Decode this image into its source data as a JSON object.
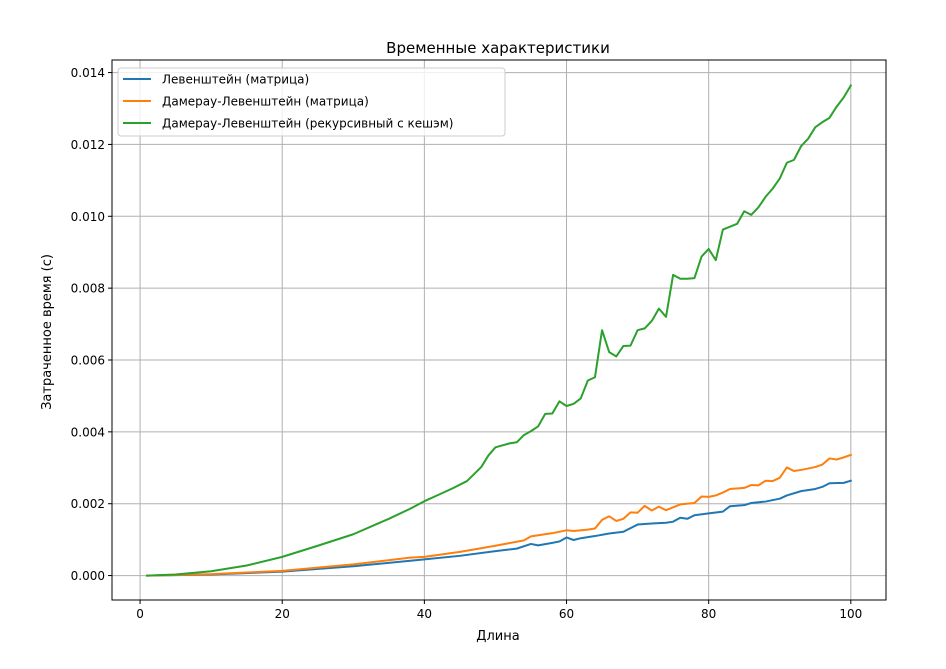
{
  "chart_data": {
    "type": "line",
    "title": "Временные характеристики",
    "xlabel": "Длина",
    "ylabel": "Затраченное время (с)",
    "xlim": [
      -3.95,
      104.95
    ],
    "ylim": [
      -0.00068,
      0.01435
    ],
    "xticks": [
      0,
      20,
      40,
      60,
      80,
      100
    ],
    "xtick_labels": [
      "0",
      "20",
      "40",
      "60",
      "80",
      "100"
    ],
    "yticks": [
      0.0,
      0.002,
      0.004,
      0.006,
      0.008,
      0.01,
      0.012,
      0.014
    ],
    "ytick_labels": [
      "0.000",
      "0.002",
      "0.004",
      "0.006",
      "0.008",
      "0.010",
      "0.012",
      "0.014"
    ],
    "grid": true,
    "legend_position": "top-left",
    "series": [
      {
        "name": "Левенштейн (матрица)",
        "color": "#1f77b4",
        "x": [
          1,
          10,
          20,
          30,
          40,
          45,
          50,
          53,
          55,
          56,
          58,
          59,
          60,
          61,
          62,
          64,
          66,
          68,
          70,
          72,
          74,
          75,
          76,
          77,
          78,
          80,
          82,
          83,
          85,
          86,
          88,
          90,
          91,
          93,
          95,
          96,
          97,
          99,
          100
        ],
        "values": [
          0.0,
          3e-05,
          0.00011,
          0.00026,
          0.00045,
          0.00055,
          0.00068,
          0.00075,
          0.00088,
          0.00084,
          0.00091,
          0.00095,
          0.00106,
          0.00099,
          0.00104,
          0.0011,
          0.00117,
          0.00122,
          0.00142,
          0.00145,
          0.00147,
          0.0015,
          0.00161,
          0.00158,
          0.00168,
          0.00173,
          0.00178,
          0.00193,
          0.00196,
          0.00202,
          0.00206,
          0.00214,
          0.00223,
          0.00235,
          0.00241,
          0.00247,
          0.00257,
          0.00258,
          0.00264
        ]
      },
      {
        "name": "Дамерау-Левенштейн (матрица)",
        "color": "#ff7f0e",
        "x": [
          1,
          10,
          20,
          30,
          38,
          40,
          45,
          50,
          54,
          55,
          58,
          60,
          61,
          63,
          64,
          65,
          66,
          67,
          68,
          69,
          70,
          71,
          72,
          73,
          74,
          76,
          78,
          79,
          80,
          81,
          82,
          83,
          85,
          86,
          87,
          88,
          89,
          90,
          91,
          92,
          93,
          95,
          96,
          97,
          98,
          99,
          100
        ],
        "values": [
          0.0,
          4e-05,
          0.00013,
          0.00031,
          0.0005,
          0.00052,
          0.00066,
          0.00083,
          0.00098,
          0.00109,
          0.00118,
          0.00126,
          0.00124,
          0.00128,
          0.00131,
          0.00155,
          0.00165,
          0.00152,
          0.00158,
          0.00176,
          0.00175,
          0.00194,
          0.00181,
          0.00192,
          0.00182,
          0.00198,
          0.00202,
          0.0022,
          0.00219,
          0.00223,
          0.00231,
          0.00241,
          0.00244,
          0.00252,
          0.00251,
          0.00264,
          0.00263,
          0.00272,
          0.00301,
          0.00291,
          0.00294,
          0.00302,
          0.00309,
          0.00326,
          0.00323,
          0.00329,
          0.00336
        ]
      },
      {
        "name": "Дамерау-Левенштейн (рекурсивный с кешэм)",
        "color": "#2ca02c",
        "x": [
          1,
          5,
          10,
          15,
          20,
          25,
          30,
          35,
          38,
          40,
          42,
          44,
          46,
          48,
          49,
          50,
          52,
          53,
          54,
          55,
          56,
          57,
          58,
          59,
          60,
          61,
          62,
          63,
          64,
          65,
          66,
          67,
          68,
          69,
          70,
          71,
          72,
          73,
          74,
          75,
          76,
          77,
          78,
          79,
          80,
          81,
          82,
          84,
          85,
          86,
          87,
          88,
          89,
          90,
          91,
          92,
          93,
          94,
          95,
          96,
          97,
          98,
          99,
          100
        ],
        "values": [
          0.0,
          3e-05,
          0.00012,
          0.00028,
          0.00052,
          0.00083,
          0.00115,
          0.00158,
          0.00186,
          0.00207,
          0.00225,
          0.00243,
          0.00263,
          0.00302,
          0.00334,
          0.00357,
          0.00368,
          0.00371,
          0.00391,
          0.00402,
          0.00415,
          0.0045,
          0.00451,
          0.00485,
          0.00472,
          0.00478,
          0.00493,
          0.00543,
          0.00552,
          0.00683,
          0.00622,
          0.0061,
          0.00639,
          0.0064,
          0.00683,
          0.00688,
          0.00709,
          0.00743,
          0.0072,
          0.00837,
          0.00826,
          0.00826,
          0.00828,
          0.00888,
          0.00909,
          0.00878,
          0.00963,
          0.00979,
          0.01014,
          0.01004,
          0.01025,
          0.01054,
          0.01077,
          0.01105,
          0.01149,
          0.01157,
          0.01195,
          0.01216,
          0.01248,
          0.01262,
          0.01274,
          0.01305,
          0.01331,
          0.01364
        ]
      }
    ]
  }
}
